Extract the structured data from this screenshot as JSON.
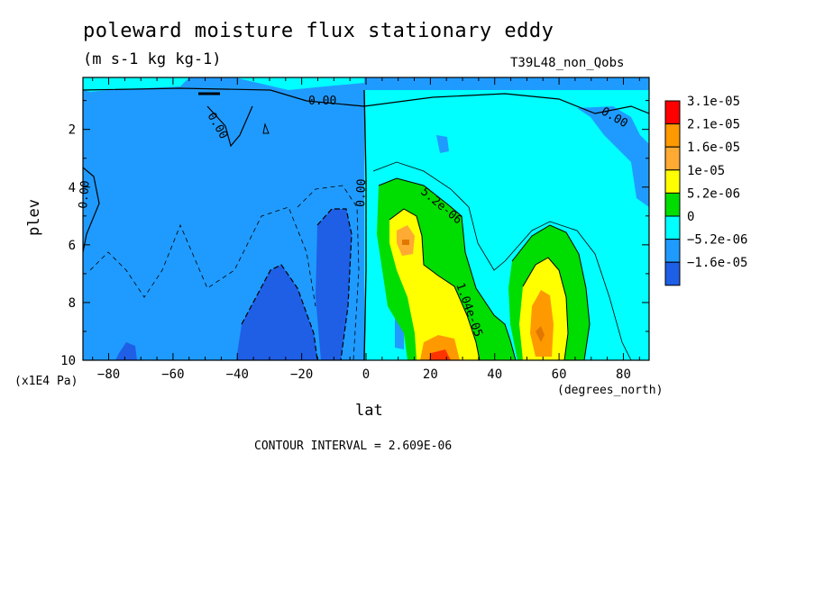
{
  "title": "poleward moisture flux stationary eddy",
  "subtitle": "(m s-1 kg kg-1)",
  "run_label": "T39L48_non_Qobs",
  "contour_interval": "CONTOUR INTERVAL = 2.609E-06",
  "chart_data": {
    "type": "heatmap",
    "title": "poleward moisture flux stationary eddy",
    "units": "(m s-1 kg kg-1)",
    "xlabel": "lat",
    "xunits": "(degrees_north)",
    "ylabel": "plev",
    "yunits": "(x1E4 Pa)",
    "xlim": [
      -88,
      88
    ],
    "ylim": [
      10,
      0.2
    ],
    "x_ticks": [
      -80,
      -60,
      -40,
      -20,
      0,
      20,
      40,
      60,
      80
    ],
    "x_tick_labels": [
      "−80",
      "−60",
      "−40",
      "−20",
      "0",
      "20",
      "40",
      "60",
      "80"
    ],
    "y_ticks": [
      2,
      4,
      6,
      8,
      10
    ],
    "y_tick_labels": [
      "2",
      "4",
      "6",
      "8",
      "10"
    ],
    "legend": {
      "placement": "right",
      "levels": [
        "3.1e-05",
        "2.1e-05",
        "1.6e-05",
        "1e-05",
        "5.2e-06",
        "0",
        "−5.2e-06",
        "−1.6e-05"
      ],
      "colors": [
        "#ff0000",
        "#ff9900",
        "#ffaa33",
        "#ffff00",
        "#00dd00",
        "#00ffff",
        "#1f9bff",
        "#1e5fe6"
      ]
    },
    "contour_labels": [
      "0.00",
      "0.00",
      "0.00",
      "0.00",
      "0.00",
      "5.2e-06",
      "1.04e-05"
    ],
    "fills": {
      "sh_base": "#1f9bff",
      "nh_base": "#00ffff",
      "negative_core": "#1e5fe6",
      "green": "#00dd00",
      "yellow": "#ffff00",
      "orange": "#ff9900",
      "max": "#e07800"
    }
  }
}
